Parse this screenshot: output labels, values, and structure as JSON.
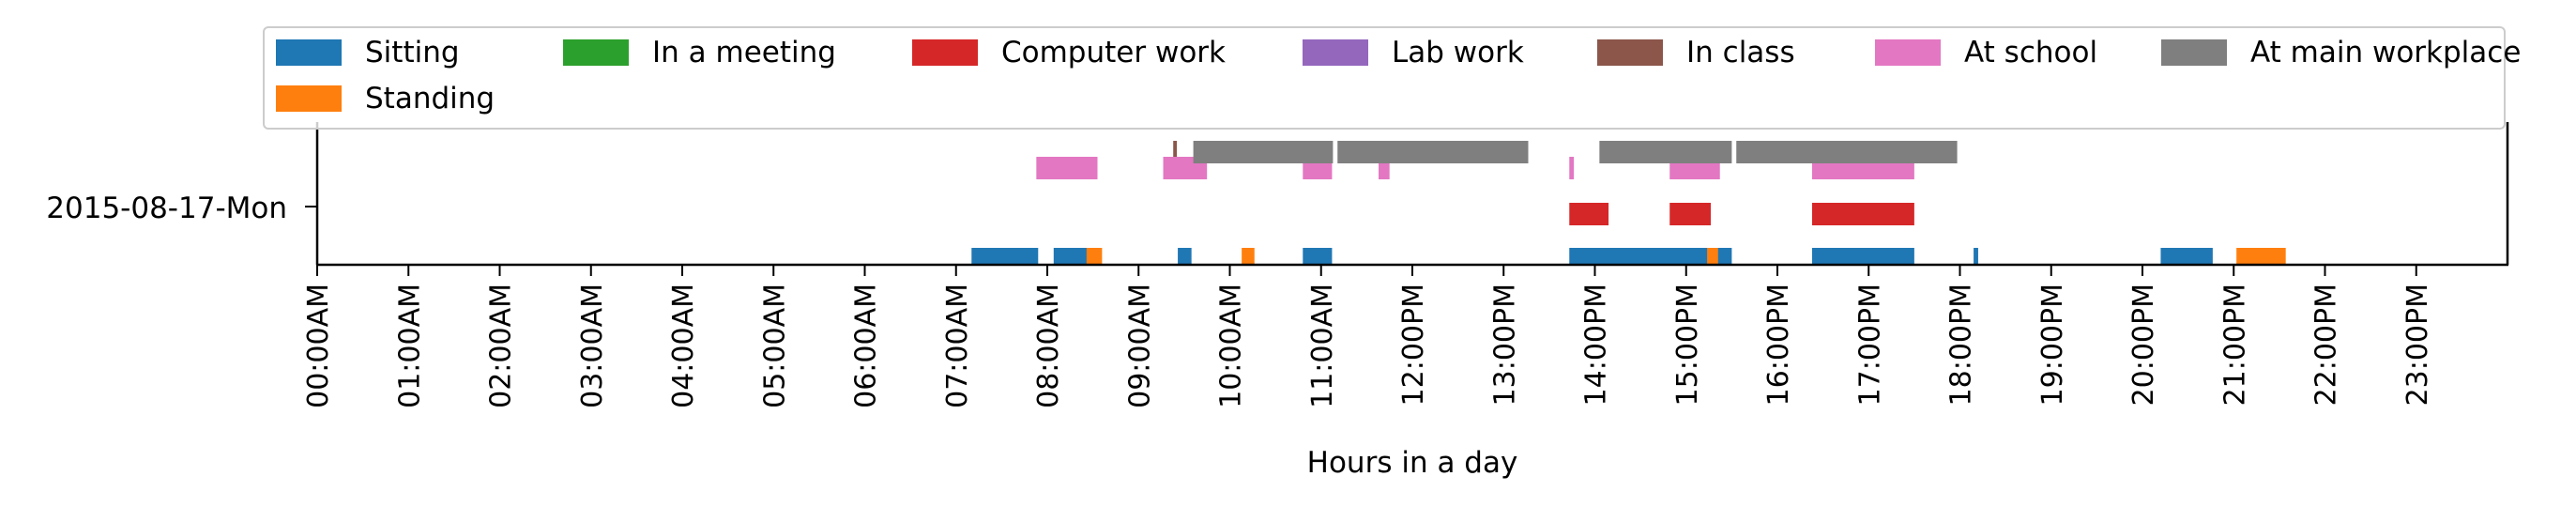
{
  "chart_data": {
    "type": "timeline",
    "xlabel": "Hours in a day",
    "xlim": [
      0,
      24
    ],
    "y_category": "2015-08-17-Mon",
    "x_ticks": [
      "00:00AM",
      "01:00AM",
      "02:00AM",
      "03:00AM",
      "04:00AM",
      "05:00AM",
      "06:00AM",
      "07:00AM",
      "08:00AM",
      "09:00AM",
      "10:00AM",
      "11:00AM",
      "12:00PM",
      "13:00PM",
      "14:00PM",
      "15:00PM",
      "16:00PM",
      "17:00PM",
      "18:00PM",
      "19:00PM",
      "20:00PM",
      "21:00PM",
      "22:00PM",
      "23:00PM"
    ],
    "legend_position": "top",
    "series": [
      {
        "name": "Sitting",
        "color": "#1f77b4",
        "lane": 0,
        "intervals": [
          [
            7.17,
            7.9
          ],
          [
            8.07,
            8.48
          ],
          [
            9.43,
            9.58
          ],
          [
            10.8,
            11.12
          ],
          [
            13.72,
            15.27
          ],
          [
            15.3,
            15.5
          ],
          [
            16.38,
            17.5
          ],
          [
            18.15,
            18.2
          ],
          [
            20.2,
            20.77
          ]
        ]
      },
      {
        "name": "Standing",
        "color": "#ff7f0e",
        "lane": 0,
        "intervals": [
          [
            8.43,
            8.6
          ],
          [
            10.13,
            10.27
          ],
          [
            15.23,
            15.35
          ],
          [
            21.03,
            21.57
          ]
        ]
      },
      {
        "name": "In a meeting",
        "color": "#2ca02c",
        "lane": 1,
        "intervals": []
      },
      {
        "name": "Computer work",
        "color": "#d62728",
        "lane": 1,
        "intervals": [
          [
            13.72,
            14.15
          ],
          [
            14.82,
            15.27
          ],
          [
            16.38,
            17.5
          ]
        ]
      },
      {
        "name": "Lab work",
        "color": "#9467bd",
        "lane": 2,
        "intervals": []
      },
      {
        "name": "In class",
        "color": "#8c564b",
        "lane": 3,
        "intervals": [
          [
            9.38,
            9.42
          ]
        ]
      },
      {
        "name": "At school",
        "color": "#e377c2",
        "lane": 2,
        "intervals": [
          [
            7.88,
            8.55
          ],
          [
            9.27,
            9.75
          ],
          [
            10.8,
            11.12
          ],
          [
            11.63,
            11.75
          ],
          [
            13.72,
            13.77
          ],
          [
            14.82,
            15.37
          ],
          [
            16.38,
            17.5
          ]
        ]
      },
      {
        "name": "At main workplace",
        "color": "#7f7f7f",
        "lane": 3,
        "intervals": [
          [
            9.6,
            11.13
          ],
          [
            11.18,
            13.27
          ],
          [
            14.05,
            15.5
          ],
          [
            15.55,
            17.97
          ]
        ]
      }
    ]
  }
}
